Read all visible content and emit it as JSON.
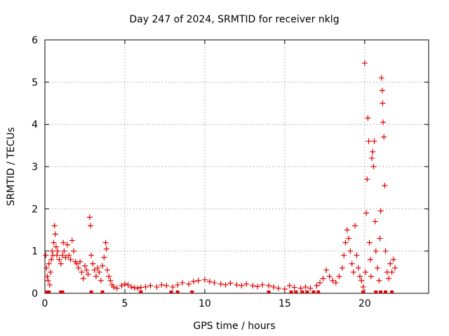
{
  "chart_data": {
    "type": "scatter",
    "title": "Day 247 of 2024, SRMTID for receiver nklg",
    "xlabel": "GPS time / hours",
    "ylabel": "SRMTID / TECUs",
    "xlim": [
      0,
      24
    ],
    "ylim": [
      0,
      6
    ],
    "x_ticks": [
      0,
      5,
      10,
      15,
      20
    ],
    "y_ticks": [
      0,
      1,
      2,
      3,
      4,
      5,
      6
    ],
    "grid": true,
    "marker": "+",
    "series": [
      {
        "name": "SRMTID",
        "color": "#e00000",
        "points": [
          [
            0.05,
            0.9
          ],
          [
            0.1,
            0.6
          ],
          [
            0.15,
            0.4
          ],
          [
            0.2,
            0.3
          ],
          [
            0.25,
            0.7
          ],
          [
            0.3,
            0.2
          ],
          [
            0.35,
            0.5
          ],
          [
            0.4,
            0.8
          ],
          [
            0.45,
            1.0
          ],
          [
            0.5,
            0.9
          ],
          [
            0.55,
            1.2
          ],
          [
            0.6,
            1.6
          ],
          [
            0.65,
            1.4
          ],
          [
            0.7,
            1.1
          ],
          [
            0.75,
            0.9
          ],
          [
            0.8,
            1.0
          ],
          [
            0.9,
            0.8
          ],
          [
            1.0,
            0.7
          ],
          [
            1.1,
            0.9
          ],
          [
            1.15,
            1.2
          ],
          [
            1.2,
            1.0
          ],
          [
            1.3,
            0.85
          ],
          [
            1.4,
            1.15
          ],
          [
            1.5,
            0.9
          ],
          [
            1.6,
            0.8
          ],
          [
            1.7,
            1.25
          ],
          [
            1.8,
            1.0
          ],
          [
            1.9,
            0.75
          ],
          [
            2.0,
            0.7
          ],
          [
            2.1,
            0.6
          ],
          [
            2.2,
            0.75
          ],
          [
            2.3,
            0.5
          ],
          [
            2.4,
            0.35
          ],
          [
            2.5,
            0.65
          ],
          [
            2.6,
            0.55
          ],
          [
            2.7,
            0.45
          ],
          [
            2.8,
            1.8
          ],
          [
            2.85,
            1.6
          ],
          [
            2.9,
            0.9
          ],
          [
            3.0,
            0.7
          ],
          [
            3.1,
            0.55
          ],
          [
            3.2,
            0.4
          ],
          [
            3.3,
            0.6
          ],
          [
            3.4,
            0.5
          ],
          [
            3.5,
            0.3
          ],
          [
            3.6,
            0.65
          ],
          [
            3.7,
            0.85
          ],
          [
            3.8,
            1.2
          ],
          [
            3.85,
            1.05
          ],
          [
            3.9,
            0.55
          ],
          [
            4.0,
            0.4
          ],
          [
            4.1,
            0.3
          ],
          [
            4.2,
            0.2
          ],
          [
            4.3,
            0.15
          ],
          [
            4.5,
            0.12
          ],
          [
            4.8,
            0.18
          ],
          [
            5.0,
            0.22
          ],
          [
            5.2,
            0.2
          ],
          [
            5.4,
            0.15
          ],
          [
            5.6,
            0.13
          ],
          [
            5.8,
            0.12
          ],
          [
            6.0,
            0.14
          ],
          [
            6.3,
            0.15
          ],
          [
            6.6,
            0.18
          ],
          [
            7.0,
            0.15
          ],
          [
            7.3,
            0.2
          ],
          [
            7.6,
            0.18
          ],
          [
            8.0,
            0.15
          ],
          [
            8.3,
            0.2
          ],
          [
            8.6,
            0.25
          ],
          [
            9.0,
            0.22
          ],
          [
            9.3,
            0.28
          ],
          [
            9.6,
            0.3
          ],
          [
            10.0,
            0.32
          ],
          [
            10.3,
            0.28
          ],
          [
            10.6,
            0.25
          ],
          [
            11.0,
            0.22
          ],
          [
            11.3,
            0.2
          ],
          [
            11.6,
            0.24
          ],
          [
            12.0,
            0.2
          ],
          [
            12.3,
            0.18
          ],
          [
            12.6,
            0.22
          ],
          [
            13.0,
            0.18
          ],
          [
            13.3,
            0.16
          ],
          [
            13.6,
            0.2
          ],
          [
            14.0,
            0.18
          ],
          [
            14.3,
            0.15
          ],
          [
            14.6,
            0.12
          ],
          [
            15.0,
            0.1
          ],
          [
            15.3,
            0.18
          ],
          [
            15.6,
            0.14
          ],
          [
            16.0,
            0.12
          ],
          [
            16.3,
            0.15
          ],
          [
            16.6,
            0.12
          ],
          [
            17.0,
            0.18
          ],
          [
            17.2,
            0.25
          ],
          [
            17.4,
            0.35
          ],
          [
            17.6,
            0.55
          ],
          [
            17.8,
            0.4
          ],
          [
            18.0,
            0.3
          ],
          [
            18.2,
            0.25
          ],
          [
            18.4,
            0.4
          ],
          [
            18.6,
            0.6
          ],
          [
            18.7,
            0.9
          ],
          [
            18.8,
            1.2
          ],
          [
            18.9,
            1.5
          ],
          [
            19.0,
            1.3
          ],
          [
            19.1,
            1.0
          ],
          [
            19.2,
            0.7
          ],
          [
            19.3,
            0.5
          ],
          [
            19.4,
            1.6
          ],
          [
            19.5,
            0.9
          ],
          [
            19.6,
            0.6
          ],
          [
            19.7,
            0.4
          ],
          [
            19.8,
            0.3
          ],
          [
            19.9,
            0.15
          ],
          [
            20.0,
            5.45
          ],
          [
            20.05,
            0.5
          ],
          [
            20.1,
            1.9
          ],
          [
            20.15,
            2.7
          ],
          [
            20.2,
            4.15
          ],
          [
            20.25,
            3.6
          ],
          [
            20.3,
            1.2
          ],
          [
            20.35,
            0.8
          ],
          [
            20.4,
            0.4
          ],
          [
            20.45,
            3.2
          ],
          [
            20.5,
            3.35
          ],
          [
            20.55,
            3.0
          ],
          [
            20.6,
            3.6
          ],
          [
            20.65,
            1.7
          ],
          [
            20.7,
            1.0
          ],
          [
            20.8,
            0.6
          ],
          [
            20.9,
            0.3
          ],
          [
            20.95,
            1.3
          ],
          [
            21.0,
            1.95
          ],
          [
            21.05,
            5.1
          ],
          [
            21.1,
            4.8
          ],
          [
            21.12,
            4.5
          ],
          [
            21.15,
            4.05
          ],
          [
            21.2,
            3.7
          ],
          [
            21.25,
            2.55
          ],
          [
            21.3,
            1.0
          ],
          [
            21.4,
            0.5
          ],
          [
            21.5,
            0.35
          ],
          [
            21.6,
            0.7
          ],
          [
            21.7,
            0.5
          ],
          [
            21.8,
            0.8
          ],
          [
            21.9,
            0.6
          ]
        ]
      }
    ],
    "zero_markers_x": [
      0.15,
      0.25,
      1.0,
      1.1,
      2.9,
      3.6,
      6.0,
      7.9,
      8.3,
      9.2,
      14.0,
      15.4,
      15.7,
      16.1,
      16.4,
      16.8,
      17.1,
      19.9,
      20.7,
      21.0,
      21.3,
      21.7
    ]
  }
}
